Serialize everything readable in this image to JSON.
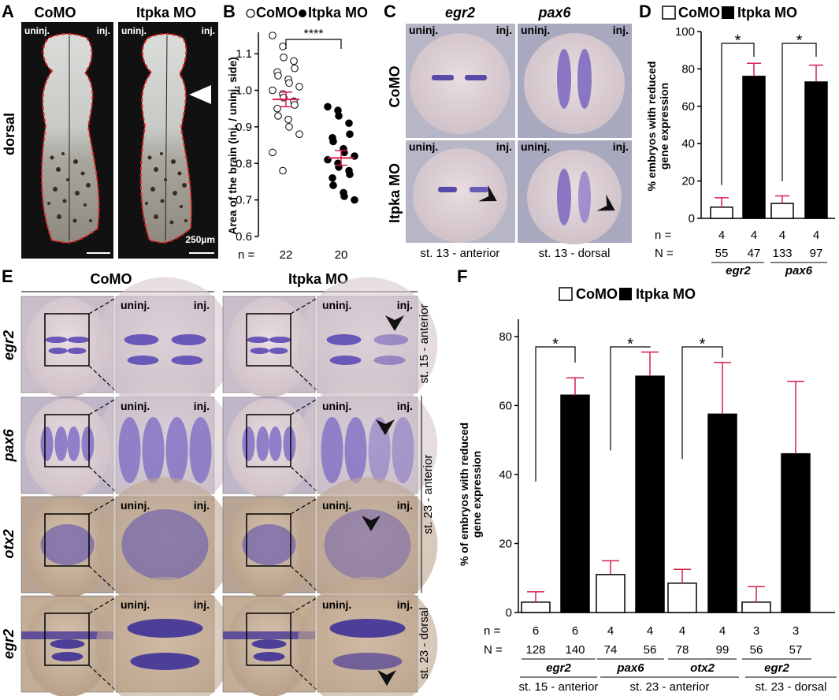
{
  "panelA": {
    "label": "A",
    "col1": "CoMO",
    "col2": "Itpka MO",
    "side": "dorsal",
    "uninj": "uninj.",
    "inj": "inj.",
    "scale": "250µm"
  },
  "panelB": {
    "label": "B",
    "legend1": "CoMO",
    "legend2": "Itpka MO",
    "ylabel": "Area of the brain  (inj. / uninj. side)",
    "sig": "****",
    "n_label": "n =",
    "n_values": [
      "22",
      "20"
    ],
    "yticks": [
      "0.6",
      "0.7",
      "0.8",
      "0.9",
      "1.0",
      "1.1"
    ]
  },
  "panelC": {
    "label": "C",
    "col1": "egr2",
    "col2": "pax6",
    "row1": "CoMO",
    "row2": "Itpka MO",
    "uninj": "uninj.",
    "inj": "inj.",
    "stage1": "st. 13 - anterior",
    "stage2": "st. 13 - dorsal"
  },
  "panelD": {
    "label": "D",
    "legend1": "CoMO",
    "legend2": "Itpka MO",
    "ylabel1": "% embryos with reduced",
    "ylabel2": "gene expression",
    "yticks": [
      "0",
      "20",
      "40",
      "60",
      "80",
      "100"
    ],
    "sig": "*",
    "n_label": "n =",
    "N_label": "N =",
    "n_values": [
      "4",
      "4",
      "4",
      "4"
    ],
    "N_values": [
      "55",
      "47",
      "133",
      "97"
    ],
    "genes": [
      "egr2",
      "pax6"
    ]
  },
  "panelE": {
    "label": "E",
    "col1": "CoMO",
    "col2": "Itpka MO",
    "rows": [
      "egr2",
      "pax6",
      "otx2",
      "egr2"
    ],
    "uninj": "uninj.",
    "inj": "inj.",
    "stage1": "st. 15 - anterior",
    "stage2": "st. 23 - anterior",
    "stage3": "st. 23 - dorsal"
  },
  "panelF": {
    "label": "F",
    "legend1": "CoMO",
    "legend2": "Itpka MO",
    "ylabel1": "% of embryos with reduced",
    "ylabel2": "gene expression",
    "yticks": [
      "0",
      "20",
      "40",
      "60",
      "80"
    ],
    "sig": "*",
    "n_label": "n =",
    "N_label": "N =",
    "n_values": [
      "6",
      "6",
      "4",
      "4",
      "4",
      "4",
      "3",
      "3"
    ],
    "N_values": [
      "128",
      "140",
      "74",
      "56",
      "78",
      "99",
      "56",
      "57"
    ],
    "genes": [
      "egr2",
      "pax6",
      "otx2",
      "egr2"
    ],
    "stages": [
      "st. 15 - anterior",
      "st. 23 - anterior",
      "st. 23 - dorsal"
    ]
  },
  "chart_data": [
    {
      "panel": "B",
      "type": "scatter",
      "categories": [
        "CoMO",
        "Itpka MO"
      ],
      "ylabel": "Area of the brain  (inj. / uninj. side)",
      "ylim": [
        0.6,
        1.15
      ],
      "series": [
        {
          "name": "CoMO",
          "mean": 0.975,
          "sem": 0.02,
          "values": [
            1.15,
            1.12,
            1.09,
            1.08,
            1.06,
            1.05,
            1.04,
            1.03,
            1.02,
            1.01,
            1.0,
            0.99,
            0.98,
            0.97,
            0.96,
            0.95,
            0.93,
            0.92,
            0.9,
            0.88,
            0.83,
            0.78
          ]
        },
        {
          "name": "Itpka MO",
          "mean": 0.815,
          "sem": 0.02,
          "values": [
            0.955,
            0.945,
            0.93,
            0.91,
            0.88,
            0.87,
            0.86,
            0.84,
            0.83,
            0.82,
            0.81,
            0.8,
            0.79,
            0.78,
            0.77,
            0.76,
            0.74,
            0.72,
            0.71,
            0.7
          ]
        }
      ]
    },
    {
      "panel": "D",
      "type": "bar",
      "categories": [
        "egr2",
        "pax6"
      ],
      "ylabel": "% embryos with reduced gene expression",
      "ylim": [
        0,
        100
      ],
      "series": [
        {
          "name": "CoMO",
          "values": [
            6,
            8
          ],
          "err": [
            5,
            4
          ]
        },
        {
          "name": "Itpka MO",
          "values": [
            76,
            73
          ],
          "err": [
            7,
            9
          ]
        }
      ]
    },
    {
      "panel": "F",
      "type": "bar",
      "categories": [
        "egr2 st. 15 - anterior",
        "pax6 st. 23 - anterior",
        "otx2 st. 23 - anterior",
        "egr2 st. 23 - dorsal"
      ],
      "ylabel": "% of embryos with reduced gene expression",
      "ylim": [
        0,
        80
      ],
      "series": [
        {
          "name": "CoMO",
          "values": [
            3,
            11,
            8.5,
            3
          ],
          "err": [
            3,
            4,
            4,
            4.5
          ]
        },
        {
          "name": "Itpka MO",
          "values": [
            63,
            68.5,
            57.5,
            46
          ],
          "err": [
            5,
            7,
            15,
            21
          ]
        }
      ]
    }
  ],
  "colors": {
    "error_bar": "#d6204b",
    "dashed_outline": "#e02020",
    "stain": "#5a4aa8",
    "embryo_bg": "#b8b2c0"
  }
}
